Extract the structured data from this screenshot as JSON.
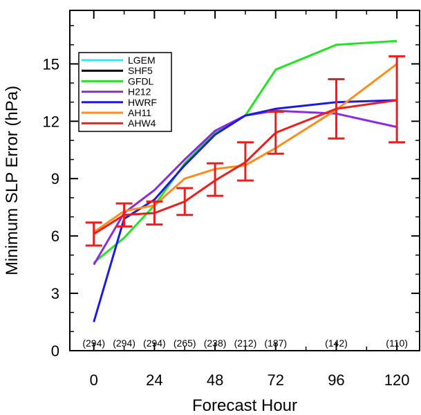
{
  "chart_data": {
    "type": "line",
    "title": "",
    "xlabel": "Forecast Hour",
    "ylabel": "Minimum SLP Error (hPa)",
    "xlim": [
      -9.5,
      129
    ],
    "ylim": [
      0,
      17.8
    ],
    "x_ticks": [
      0,
      24,
      48,
      72,
      96,
      120
    ],
    "y_ticks": [
      0,
      3,
      6,
      9,
      12,
      15
    ],
    "grid": false,
    "legend_position": "top-left",
    "sample_counts": [
      {
        "x": 0,
        "label": "(294)"
      },
      {
        "x": 12,
        "label": "(294)"
      },
      {
        "x": 24,
        "label": "(294)"
      },
      {
        "x": 36,
        "label": "(265)"
      },
      {
        "x": 48,
        "label": "(238)"
      },
      {
        "x": 60,
        "label": "(212)"
      },
      {
        "x": 72,
        "label": "(187)"
      },
      {
        "x": 96,
        "label": "(142)"
      },
      {
        "x": 120,
        "label": "(110)"
      }
    ],
    "series": [
      {
        "name": "LGEM",
        "color": "#33e6f2",
        "x": [],
        "y": []
      },
      {
        "name": "SHF5",
        "color": "#000000",
        "x": [],
        "y": []
      },
      {
        "name": "GFDL",
        "color": "#22e522",
        "x": [
          0,
          12,
          24,
          36,
          48,
          60,
          72,
          96,
          120
        ],
        "y": [
          4.6,
          5.9,
          7.6,
          9.8,
          11.4,
          12.3,
          14.7,
          16.0,
          16.2
        ]
      },
      {
        "name": "H212",
        "color": "#8a2be2",
        "x": [
          0,
          12,
          24,
          36,
          48,
          60,
          72,
          96,
          120
        ],
        "y": [
          4.5,
          7.2,
          8.4,
          10.0,
          11.5,
          12.3,
          12.55,
          12.4,
          11.7
        ]
      },
      {
        "name": "HWRF",
        "color": "#1a1ae6",
        "x": [
          0,
          12,
          24,
          36,
          48,
          60,
          72,
          96,
          120
        ],
        "y": [
          1.5,
          6.9,
          7.9,
          9.7,
          11.3,
          12.3,
          12.65,
          13.0,
          13.1
        ]
      },
      {
        "name": "AH11",
        "color": "#ff8c1a",
        "x": [
          0,
          12,
          24,
          36,
          48,
          60,
          72,
          96,
          120
        ],
        "y": [
          6.2,
          7.3,
          7.6,
          9.0,
          9.5,
          9.7,
          10.6,
          12.6,
          15.0
        ]
      },
      {
        "name": "AHW4",
        "color": "#ee1c1c",
        "x": [
          0,
          12,
          24,
          36,
          48,
          60,
          72,
          96,
          120
        ],
        "y": [
          6.1,
          7.1,
          7.2,
          7.8,
          8.9,
          9.85,
          11.4,
          12.65,
          13.1
        ],
        "error_low": [
          5.5,
          6.5,
          6.6,
          7.1,
          8.1,
          8.9,
          10.3,
          11.1,
          10.9
        ],
        "error_high": [
          6.7,
          7.7,
          7.8,
          8.5,
          9.8,
          10.9,
          12.5,
          14.2,
          15.4
        ]
      }
    ]
  }
}
